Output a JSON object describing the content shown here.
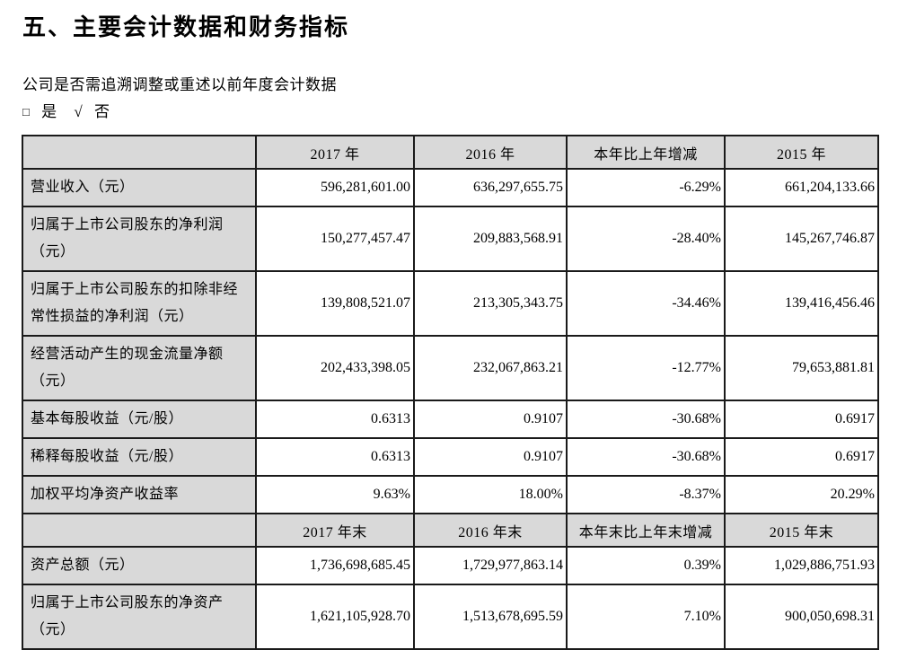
{
  "page": {
    "title": "五、主要会计数据和财务指标",
    "question": "公司是否需追溯调整或重述以前年度会计数据",
    "choice": {
      "box_symbol": "□",
      "yes_label": "是",
      "check_symbol": "√",
      "no_label": "否"
    }
  },
  "colors": {
    "header_bg": "#d9d9d9",
    "border": "#1a1a1a",
    "text": "#000000"
  },
  "table": {
    "sections": [
      {
        "header": [
          "",
          "2017 年",
          "2016 年",
          "本年比上年增减",
          "2015 年"
        ],
        "rows": [
          {
            "label": "营业收入（元）",
            "values": [
              "596,281,601.00",
              "636,297,655.75",
              "-6.29%",
              "661,204,133.66"
            ]
          },
          {
            "label": "归属于上市公司股东的净利润（元）",
            "values": [
              "150,277,457.47",
              "209,883,568.91",
              "-28.40%",
              "145,267,746.87"
            ]
          },
          {
            "label": "归属于上市公司股东的扣除非经常性损益的净利润（元）",
            "values": [
              "139,808,521.07",
              "213,305,343.75",
              "-34.46%",
              "139,416,456.46"
            ]
          },
          {
            "label": "经营活动产生的现金流量净额（元）",
            "values": [
              "202,433,398.05",
              "232,067,863.21",
              "-12.77%",
              "79,653,881.81"
            ]
          },
          {
            "label": "基本每股收益（元/股）",
            "values": [
              "0.6313",
              "0.9107",
              "-30.68%",
              "0.6917"
            ]
          },
          {
            "label": "稀释每股收益（元/股）",
            "values": [
              "0.6313",
              "0.9107",
              "-30.68%",
              "0.6917"
            ]
          },
          {
            "label": "加权平均净资产收益率",
            "values": [
              "9.63%",
              "18.00%",
              "-8.37%",
              "20.29%"
            ]
          }
        ]
      },
      {
        "header": [
          "",
          "2017 年末",
          "2016 年末",
          "本年末比上年末增减",
          "2015 年末"
        ],
        "rows": [
          {
            "label": "资产总额（元）",
            "values": [
              "1,736,698,685.45",
              "1,729,977,863.14",
              "0.39%",
              "1,029,886,751.93"
            ]
          },
          {
            "label": "归属于上市公司股东的净资产（元）",
            "values": [
              "1,621,105,928.70",
              "1,513,678,695.59",
              "7.10%",
              "900,050,698.31"
            ]
          }
        ]
      }
    ]
  }
}
